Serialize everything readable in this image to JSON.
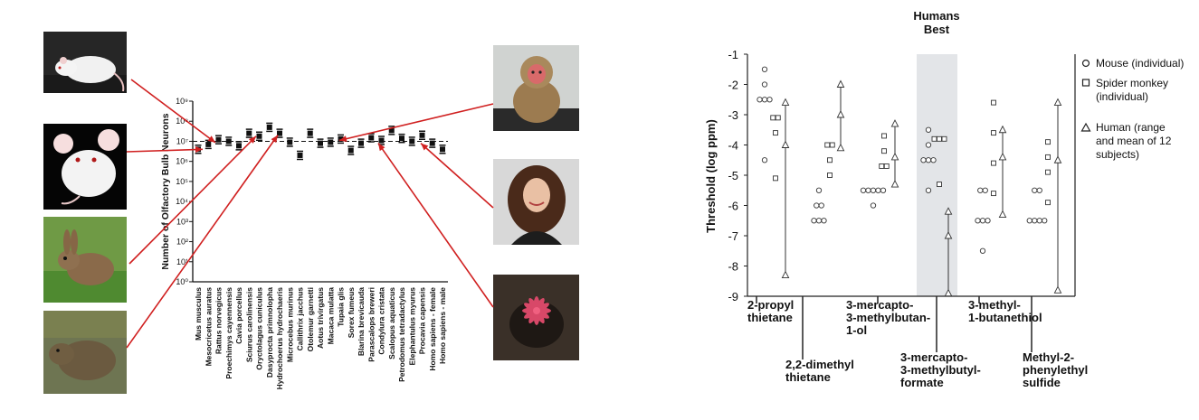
{
  "photos": [
    {
      "icon": "rat-photo-icon",
      "bg": "#2a2a2a",
      "fg": "#f2f2f2"
    },
    {
      "icon": "mouse-photo-icon",
      "bg": "#050505",
      "fg": "#f4f4f4"
    },
    {
      "icon": "rabbit-photo-icon",
      "bg": "#5a8a3a",
      "fg": "#8a6a4a"
    },
    {
      "icon": "capybara-photo-icon",
      "bg": "#6a7050",
      "fg": "#6b5a40"
    },
    {
      "icon": "monkey-photo-icon",
      "bg": "#cfd2d0",
      "fg": "#9b7a50"
    },
    {
      "icon": "woman-photo-icon",
      "bg": "#d7d7d7",
      "fg": "#4a2a1a"
    },
    {
      "icon": "star-nosed-mole-photo-icon",
      "bg": "#3a3028",
      "fg": "#d04060"
    }
  ],
  "chart_data": [
    {
      "type": "scatter",
      "ylabel": "Number of Olfactory Bulb Neurons",
      "yscale": "log",
      "ylim": [
        1,
        1000000000
      ],
      "ytick_labels": [
        "10⁰",
        "10¹",
        "10²",
        "10³",
        "10⁴",
        "10⁵",
        "10⁶",
        "10⁷",
        "10⁸",
        "10⁹"
      ],
      "reference_line": 10000000,
      "categories": [
        "Mus musculus",
        "Mesocricetus auratus",
        "Rattus norvegicus",
        "Proechimys cayennensis",
        "Cavia porcellus",
        "Sciurus carolinensis",
        "Oryctolagus cuniculus",
        "Dasyprocta primnolopha",
        "Hydrochoerus hydrochaeris",
        "Microcebus murinus",
        "Callithrix jacchus",
        "Otolemur garnetti",
        "Aotus trivirgatus",
        "Macaca mulatta",
        "Tupaia glis",
        "Sorex fumeus",
        "Blarina brevicauda",
        "Parascalops breweri",
        "Condylura cristata",
        "Scalopus aquaticus",
        "Petrodomus tetradactylus",
        "Elephantulus myurus",
        "Procavia capensis",
        "Homo sapiens - female",
        "Homo sapiens - male"
      ],
      "values": [
        4000000,
        7000000,
        12000000,
        10000000,
        6000000,
        25000000,
        18000000,
        50000000,
        25000000,
        9000000,
        2000000,
        25000000,
        8000000,
        9000000,
        13000000,
        3500000,
        8000000,
        15000000,
        11000000,
        35000000,
        14000000,
        10000000,
        20000000,
        8000000,
        4000000
      ]
    },
    {
      "type": "scatter",
      "ylabel": "Threshold (log ppm)",
      "ylim": [
        -9,
        -1
      ],
      "yticks": [
        -1,
        -2,
        -3,
        -4,
        -5,
        -6,
        -7,
        -8,
        -9
      ],
      "highlight_label": "Humans\nBest",
      "legend": [
        "Mouse (individual)",
        "Spider monkey\n(individual)",
        "Human (range\nand mean of 12\nsubjects)"
      ],
      "legend_position": "right",
      "categories": [
        "2-propyl\nthietane",
        "2,2-dimethyl\nthietane",
        "3-mercapto-\n3-methylbutan-\n1-ol",
        "3-mercapto-\n3-methylbutyl-\nformate",
        "3-methyl-\n1-butanethiol",
        "Methyl-2-\nphenylethyl\nsulfide"
      ],
      "series": [
        {
          "name": "Mouse (individual)",
          "values": [
            [
              -1.5,
              -2,
              -2.5,
              -2.5,
              -2.5,
              -4.5
            ],
            [
              -5.5,
              -6,
              -6,
              -6.5,
              -6.5,
              -6.5
            ],
            [
              -5.5,
              -5.5,
              -5.5,
              -5.5,
              -5.5,
              -6
            ],
            [
              -3.5,
              -4,
              -4.5,
              -4.5,
              -4.5,
              -5.5
            ],
            [
              -5.5,
              -5.5,
              -6.5,
              -6.5,
              -6.5,
              -7.5
            ],
            [
              -5.5,
              -5.5,
              -6.5,
              -6.5,
              -6.5,
              -6.5
            ]
          ]
        },
        {
          "name": "Spider monkey (individual)",
          "values": [
            [
              -3.1,
              -3.1,
              -3.6,
              -5.1
            ],
            [
              -4,
              -4,
              -4.5,
              -5
            ],
            [
              -3.7,
              -4.2,
              -4.7,
              -4.7
            ],
            [
              -3.8,
              -3.8,
              -3.8,
              -5.3
            ],
            [
              -2.6,
              -3.6,
              -4.6,
              -5.6
            ],
            [
              -3.9,
              -4.4,
              -4.9,
              -5.9
            ]
          ]
        },
        {
          "name": "Human (range and mean of 12 subjects)",
          "min": [
            -8.3,
            -4.1,
            -5.3,
            -8.9,
            -6.3,
            -8.8
          ],
          "mean": [
            -4,
            -3,
            -4.4,
            -7,
            -4.4,
            -4.5
          ],
          "max": [
            -2.6,
            -2,
            -3.3,
            -6.2,
            -3.5,
            -2.6
          ]
        }
      ]
    }
  ]
}
